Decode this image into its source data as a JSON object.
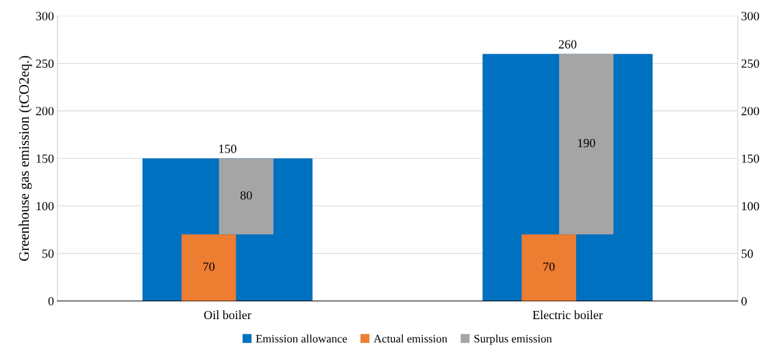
{
  "chart_data": {
    "type": "bar",
    "ylabel": "Greenhouse gas emission (tCO2eq.)",
    "categories": [
      "Oil boiler",
      "Electric boiler"
    ],
    "series": [
      {
        "name": "Emission allowance",
        "color": "#0070c0",
        "values": [
          150,
          260
        ]
      },
      {
        "name": "Actual emission",
        "color": "#ed7d31",
        "values": [
          70,
          70
        ],
        "axis": "y2"
      },
      {
        "name": "Surplus emission",
        "color": "#a5a5a5",
        "values": [
          80,
          190
        ],
        "axis": "y2"
      }
    ],
    "stacked": true,
    "ylim": [
      0,
      300
    ],
    "yticks": [
      0,
      50,
      100,
      150,
      200,
      250,
      300
    ],
    "y2lim": [
      0,
      300
    ],
    "y2ticks": [
      0,
      50,
      100,
      150,
      200,
      250,
      300
    ],
    "grid": "y",
    "legend": "bottom",
    "data_labels": true
  }
}
